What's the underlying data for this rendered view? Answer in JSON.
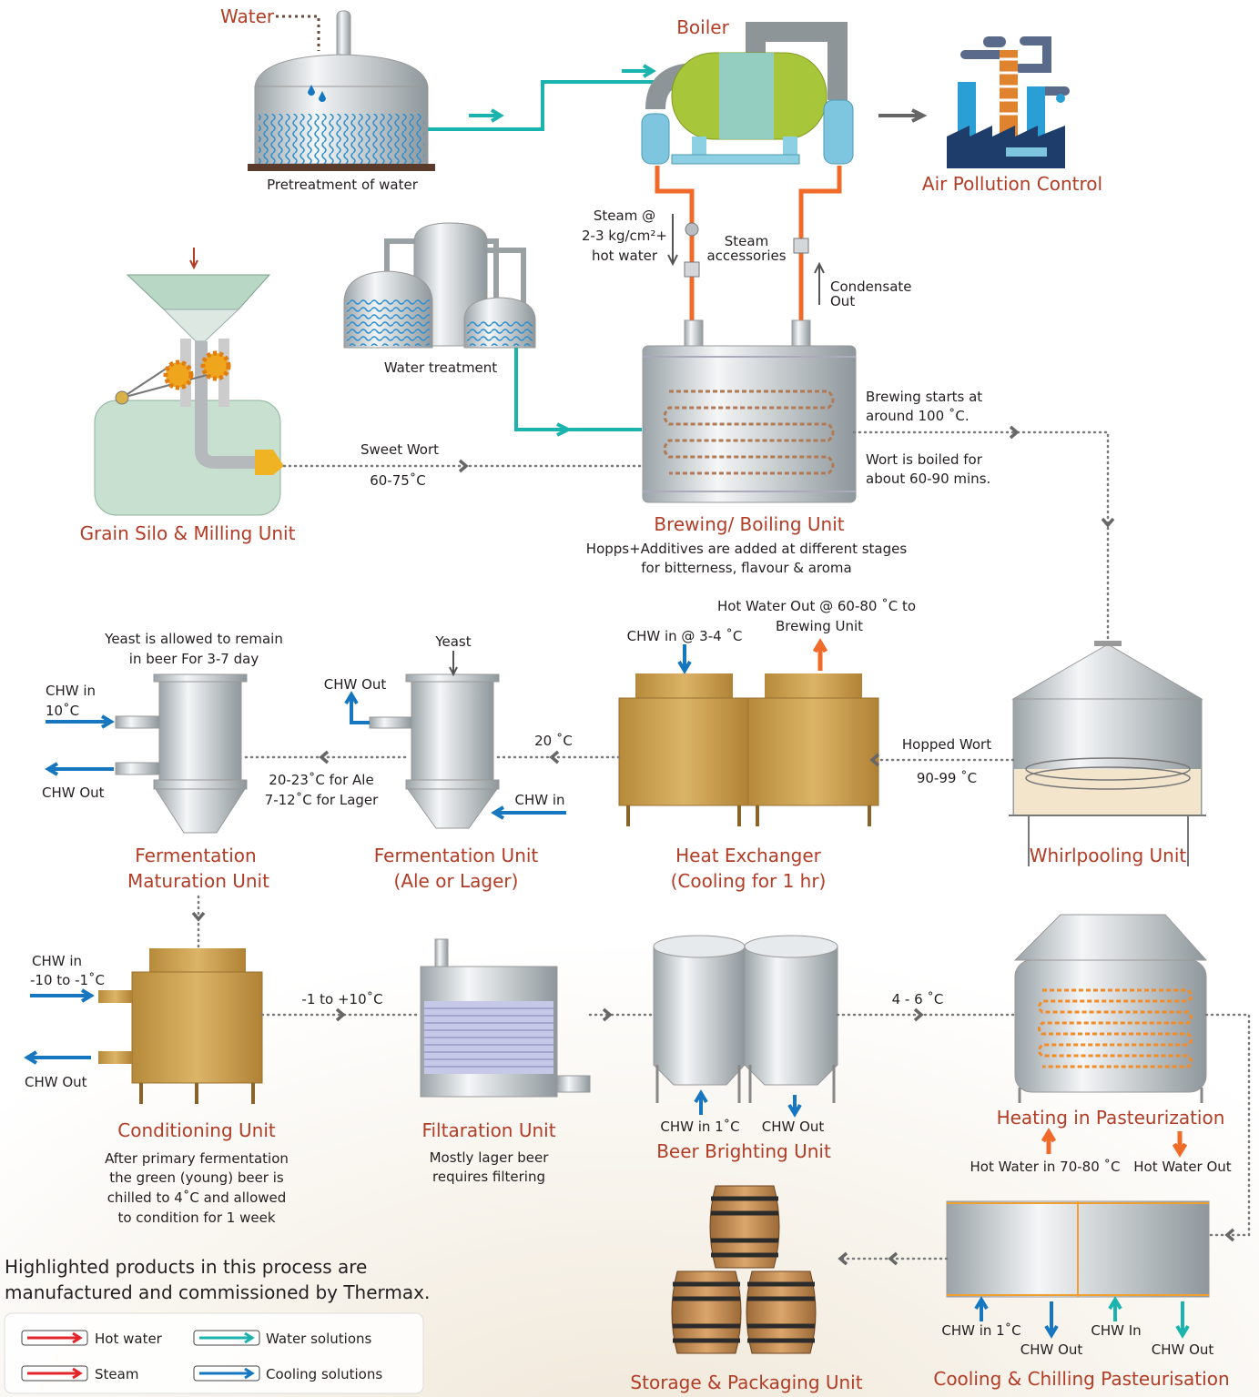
{
  "nodes": {
    "pretreatment": {
      "input": "Water",
      "label": "Pretreatment of water"
    },
    "boiler": {
      "label": "Boiler"
    },
    "air_pollution": {
      "label": "Air Pollution Control"
    },
    "water_treatment": {
      "label": "Water treatment"
    },
    "grain_silo": {
      "label": "Grain Silo & Milling Unit"
    },
    "brewing": {
      "label": "Brewing/ Boiling Unit",
      "notes": [
        "Hopps+Additives are added at different stages",
        "for bitterness, flavour & aroma"
      ],
      "side_notes": [
        "Brewing starts at",
        "around 100 ˚C.",
        "Wort is boiled  for",
        "about 60-90 mins."
      ]
    },
    "whirlpool": {
      "label": "Whirlpooling Unit"
    },
    "heat_exchanger": {
      "label": [
        "Heat Exchanger",
        "(Cooling for 1 hr)"
      ],
      "chw_in": "CHW in @ 3-4 ˚C",
      "hot_out": [
        "Hot Water Out @ 60-80 ˚C to",
        "Brewing Unit"
      ]
    },
    "fermentation": {
      "label": [
        "Fermentation Unit",
        "(Ale or Lager)"
      ],
      "yeast": "Yeast",
      "chw_out": "CHW Out",
      "chw_in": "CHW in"
    },
    "maturation": {
      "label": [
        "Fermentation",
        "Maturation Unit"
      ],
      "notes": [
        "Yeast is allowed to remain",
        "in beer For 3-7 day"
      ],
      "chw_in": [
        "CHW in",
        "10˚C"
      ],
      "chw_out": "CHW Out"
    },
    "conditioning": {
      "label": "Conditioning Unit",
      "notes": [
        "After primary fermentation",
        "the green (young) beer is",
        "chilled to 4˚C and allowed",
        "to condition for 1 week"
      ],
      "chw_in": [
        "CHW in",
        "-10 to -1˚C"
      ],
      "chw_out": "CHW Out"
    },
    "filtration": {
      "label": "Filtaration Unit",
      "notes": [
        "Mostly lager beer",
        "requires filtering"
      ]
    },
    "brighting": {
      "label": "Beer Brighting Unit",
      "chw_in": "CHW in 1˚C",
      "chw_out": "CHW Out"
    },
    "heating_pasteurization": {
      "label": "Heating in Pasteurization",
      "hot_in": "Hot Water in 70-80 ˚C",
      "hot_out": "Hot Water Out"
    },
    "cooling_pasteurisation": {
      "label": "Cooling & Chilling Pasteurisation",
      "io": [
        "CHW in 1˚C",
        "CHW Out",
        "CHW In",
        "CHW Out"
      ]
    },
    "storage": {
      "label": "Storage & Packaging Unit"
    }
  },
  "flows": {
    "steam": [
      "Steam @",
      "2-3 kg/cm²+",
      "hot water"
    ],
    "steam_accessories": [
      "Steam",
      "accessories"
    ],
    "condensate": [
      "Condensate",
      "Out"
    ],
    "sweet_wort": [
      "Sweet Wort",
      "60-75˚C"
    ],
    "hopped_wort": [
      "Hopped Wort",
      "90-99 ˚C"
    ],
    "to_fermentation": "20 ˚C",
    "to_maturation": [
      "20-23˚C for Ale",
      "7-12˚C for Lager"
    ],
    "to_filtration": "-1 to +10˚C",
    "to_pasteurization": "4 - 6 ˚C"
  },
  "note": [
    "Highlighted products in this process are",
    "manufactured and commissioned by Thermax."
  ],
  "legend": [
    "Hot water",
    "Water solutions",
    "Steam",
    "Cooling solutions"
  ]
}
